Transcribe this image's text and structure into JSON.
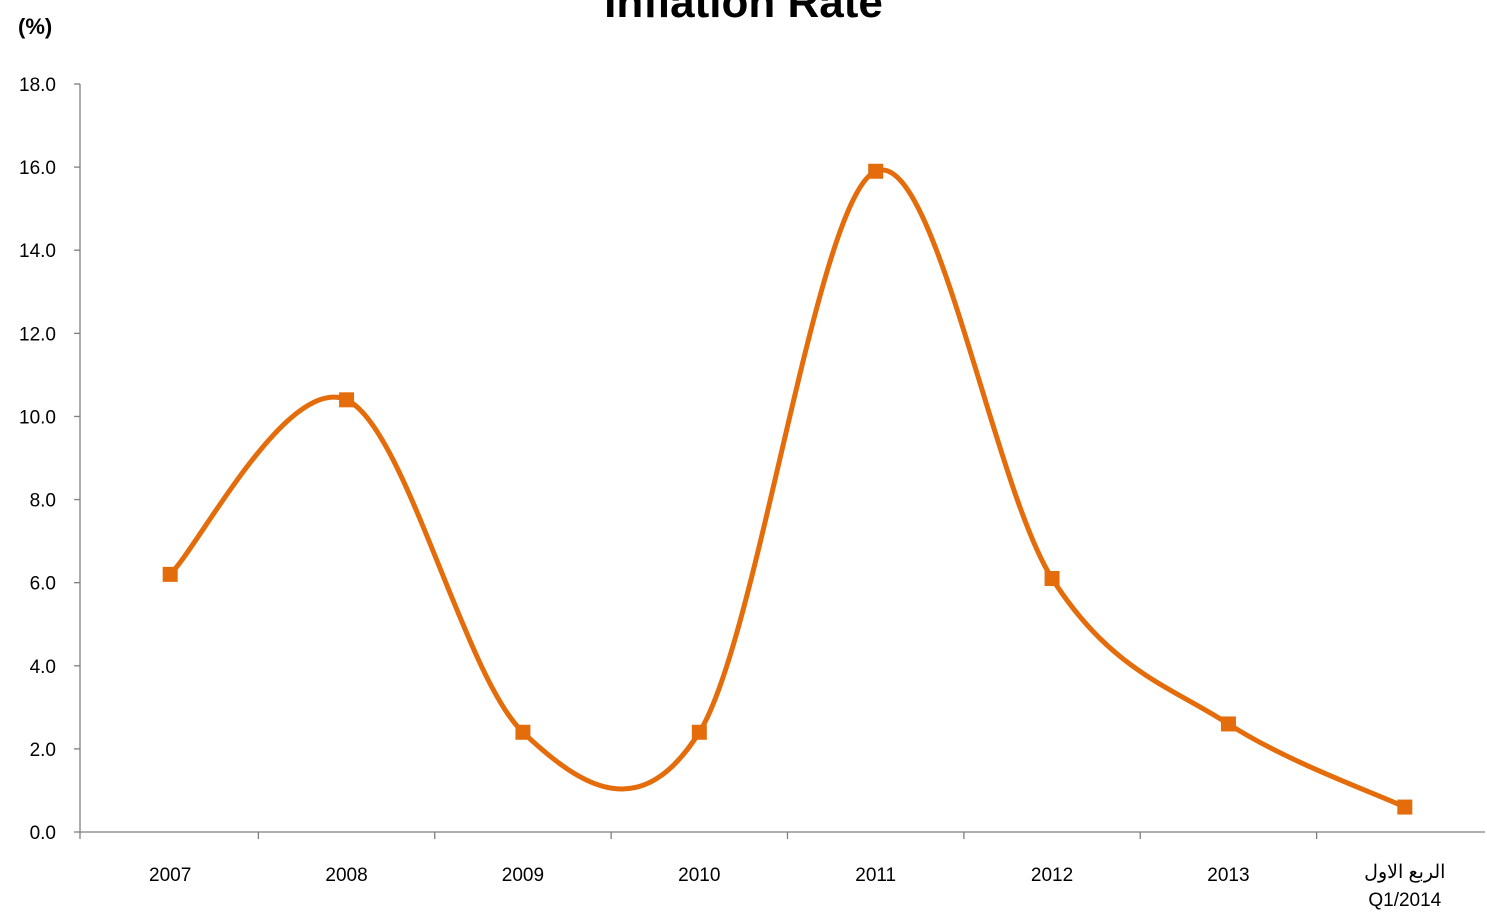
{
  "chart_data": {
    "type": "line",
    "title": "Inflation Rate",
    "ylabel": "(%)",
    "xlabel": "",
    "categories": [
      "2007",
      "2008",
      "2009",
      "2010",
      "2011",
      "2012",
      "2013",
      "الربع الاول\nQ1/2014"
    ],
    "series": [
      {
        "values": [
          6.2,
          10.4,
          2.4,
          2.4,
          15.9,
          6.1,
          2.6,
          0.6
        ]
      }
    ],
    "ylim": [
      0,
      18
    ],
    "ytick_step": 2,
    "ytick_labels": [
      "0.0",
      "2.0",
      "4.0",
      "6.0",
      "8.0",
      "10.0",
      "12.0",
      "14.0",
      "16.0",
      "18.0"
    ],
    "grid": false,
    "smooth": true,
    "line_color": "#E46C0A",
    "marker": "square",
    "legend": "none"
  }
}
